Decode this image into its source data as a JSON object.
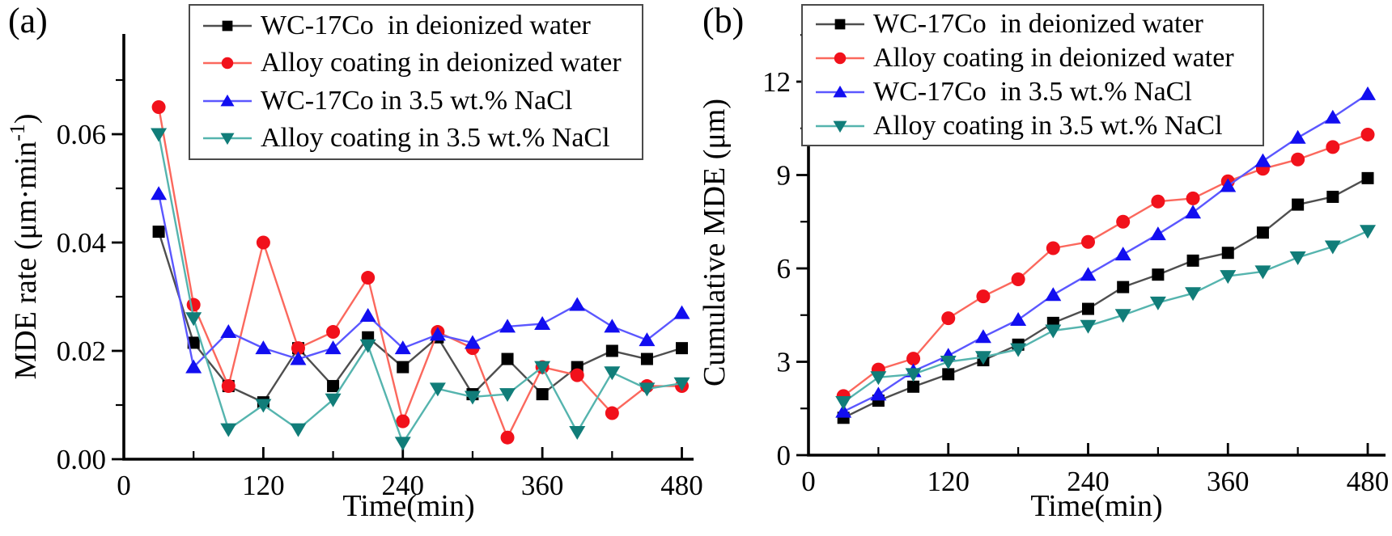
{
  "figure": {
    "panel_a_label": "(a)",
    "panel_b_label": "(b)"
  },
  "chart_data": [
    {
      "id": "a",
      "type": "line",
      "xlabel": "Time(min)",
      "ylabel": "MDE rate (μm·min⁻¹)",
      "ylabel_parts": {
        "pre": "MDE rate (μm·min",
        "sup": "-1",
        "post": ")"
      },
      "xlim": [
        0,
        490
      ],
      "ylim": [
        0,
        0.0785
      ],
      "grid": false,
      "legend_position": "top-left-inside",
      "x_major_ticks": [
        0,
        120,
        240,
        360,
        480
      ],
      "x_major_tick_labels": [
        "0",
        "120",
        "240",
        "360",
        "480"
      ],
      "x_minor_ticks": [
        60,
        180,
        300,
        420
      ],
      "y_major_ticks": [
        0.0,
        0.02,
        0.04,
        0.06
      ],
      "y_major_tick_labels": [
        "0.00",
        "0.02",
        "0.04",
        "0.06"
      ],
      "y_minor_ticks": [
        0.01,
        0.03,
        0.05,
        0.07
      ],
      "x": [
        30,
        60,
        90,
        120,
        150,
        180,
        210,
        240,
        270,
        300,
        330,
        360,
        390,
        420,
        450,
        480
      ],
      "series": [
        {
          "name": "WC-17Co  in deionized water",
          "marker": "square",
          "line_color": "#4e4e4e",
          "marker_color": "#000000",
          "values": [
            0.042,
            0.0215,
            0.0135,
            0.0105,
            0.0205,
            0.0135,
            0.0225,
            0.017,
            0.0225,
            0.012,
            0.0185,
            0.012,
            0.017,
            0.02,
            0.0185,
            0.0205
          ]
        },
        {
          "name": "Alloy coating in deionized water",
          "marker": "circle",
          "line_color": "#fb685d",
          "marker_color": "#f1111b",
          "values": [
            0.065,
            0.0285,
            0.0135,
            0.04,
            0.0205,
            0.0235,
            0.0335,
            0.007,
            0.0235,
            0.0205,
            0.004,
            0.017,
            0.0155,
            0.0085,
            0.0135,
            0.0135
          ]
        },
        {
          "name": "WC-17Co in 3.5 wt.% NaCl",
          "marker": "triangle-up",
          "line_color": "#5b57ff",
          "marker_color": "#120ef0",
          "values": [
            0.049,
            0.017,
            0.0235,
            0.0205,
            0.0185,
            0.0205,
            0.0265,
            0.0205,
            0.023,
            0.0215,
            0.0245,
            0.025,
            0.0285,
            0.0245,
            0.022,
            0.027
          ]
        },
        {
          "name": "Alloy coating in 3.5 wt.% NaCl",
          "marker": "triangle-down",
          "line_color": "#55b4ae",
          "marker_color": "#117d79",
          "values": [
            0.06,
            0.026,
            0.0055,
            0.01,
            0.0055,
            0.011,
            0.021,
            0.003,
            0.013,
            0.0115,
            0.012,
            0.017,
            0.005,
            0.016,
            0.013,
            0.014
          ]
        }
      ]
    },
    {
      "id": "b",
      "type": "line",
      "xlabel": "Time(min)",
      "ylabel": "Cumulative MDE (μm)",
      "xlim": [
        0,
        495
      ],
      "ylim": [
        0,
        13.7
      ],
      "grid": false,
      "legend_position": "top-left-inside",
      "x_major_ticks": [
        0,
        120,
        240,
        360,
        480
      ],
      "x_major_tick_labels": [
        "0",
        "120",
        "240",
        "360",
        "480"
      ],
      "x_minor_ticks": [
        60,
        180,
        300,
        420
      ],
      "y_major_ticks": [
        0,
        3,
        6,
        9,
        12
      ],
      "y_major_tick_labels": [
        "0",
        "3",
        "6",
        "9",
        "12"
      ],
      "y_minor_ticks": [
        1.5,
        4.5,
        7.5,
        10.5,
        13.5
      ],
      "x": [
        30,
        60,
        90,
        120,
        150,
        180,
        210,
        240,
        270,
        300,
        330,
        360,
        390,
        420,
        450,
        480
      ],
      "series": [
        {
          "name": "WC-17Co  in deionized water",
          "marker": "square",
          "line_color": "#4e4e4e",
          "marker_color": "#000000",
          "values": [
            1.2,
            1.75,
            2.2,
            2.6,
            3.05,
            3.55,
            4.25,
            4.7,
            5.4,
            5.8,
            6.25,
            6.5,
            7.15,
            8.05,
            8.3,
            8.9
          ]
        },
        {
          "name": "Alloy coating in deionized water",
          "marker": "circle",
          "line_color": "#fb685d",
          "marker_color": "#f1111b",
          "values": [
            1.9,
            2.75,
            3.1,
            4.4,
            5.1,
            5.65,
            6.65,
            6.85,
            7.5,
            8.15,
            8.25,
            8.8,
            9.2,
            9.5,
            9.9,
            10.3
          ]
        },
        {
          "name": "WC-17Co  in 3.5 wt.% NaCl",
          "marker": "triangle-up",
          "line_color": "#5b57ff",
          "marker_color": "#120ef0",
          "values": [
            1.4,
            1.95,
            2.7,
            3.2,
            3.8,
            4.35,
            5.15,
            5.8,
            6.45,
            7.1,
            7.8,
            8.65,
            9.45,
            10.2,
            10.85,
            11.6
          ]
        },
        {
          "name": "Alloy coating in 3.5 wt.% NaCl",
          "marker": "triangle-down",
          "line_color": "#55b4ae",
          "marker_color": "#117d79",
          "values": [
            1.7,
            2.5,
            2.6,
            3.0,
            3.15,
            3.4,
            4.0,
            4.15,
            4.5,
            4.9,
            5.2,
            5.75,
            5.9,
            6.35,
            6.7,
            7.2
          ]
        }
      ]
    }
  ]
}
